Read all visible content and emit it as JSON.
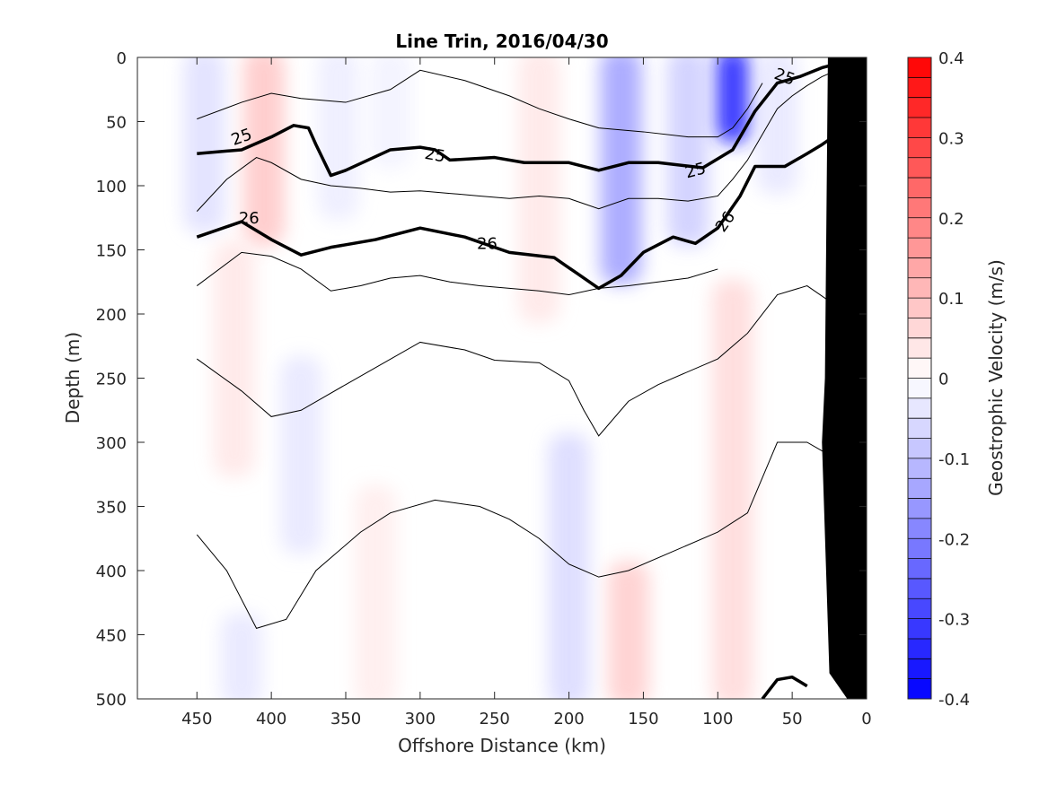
{
  "chart_data": {
    "type": "contour",
    "title": "Line Trin, 2016/04/30",
    "xlabel": "Offshore Distance (km)",
    "ylabel": "Depth (m)",
    "colorbar_label": "Geostrophic Velocity (m/s)",
    "xlim": [
      490,
      0
    ],
    "ylim": [
      500,
      0
    ],
    "x_reversed": true,
    "y_reversed": true,
    "x_ticks": [
      450,
      400,
      350,
      300,
      250,
      200,
      150,
      100,
      50,
      0
    ],
    "y_ticks": [
      0,
      50,
      100,
      150,
      200,
      250,
      300,
      350,
      400,
      450,
      500
    ],
    "colorbar_range": [
      -0.4,
      0.4
    ],
    "colorbar_ticks": [
      0.4,
      0.3,
      0.2,
      0.1,
      0,
      -0.1,
      -0.2,
      -0.3,
      -0.4
    ],
    "colorbar_levels": 32,
    "colors": {
      "positive": "#ff0000",
      "negative": "#0000ff",
      "zero": "#ffffff",
      "bathymetry": "#000000"
    },
    "data_extent_x": [
      450,
      0
    ],
    "velocity_bands": [
      {
        "x": 445,
        "y": [
          0,
          130
        ],
        "v": -0.05
      },
      {
        "x": 405,
        "y": [
          0,
          140
        ],
        "v": 0.09
      },
      {
        "x": 425,
        "y": [
          150,
          320
        ],
        "v": 0.04
      },
      {
        "x": 355,
        "y": [
          0,
          120
        ],
        "v": -0.03
      },
      {
        "x": 380,
        "y": [
          240,
          380
        ],
        "v": -0.04
      },
      {
        "x": 320,
        "y": [
          0,
          80
        ],
        "v": -0.02
      },
      {
        "x": 220,
        "y": [
          0,
          200
        ],
        "v": 0.04
      },
      {
        "x": 165,
        "y": [
          0,
          170
        ],
        "v": -0.15
      },
      {
        "x": 90,
        "y": [
          0,
          60
        ],
        "v": -0.35
      },
      {
        "x": 120,
        "y": [
          0,
          140
        ],
        "v": -0.08
      },
      {
        "x": 60,
        "y": [
          0,
          100
        ],
        "v": -0.04
      },
      {
        "x": 90,
        "y": [
          180,
          500
        ],
        "v": 0.06
      },
      {
        "x": 160,
        "y": [
          400,
          500
        ],
        "v": 0.08
      },
      {
        "x": 200,
        "y": [
          300,
          500
        ],
        "v": -0.06
      },
      {
        "x": 330,
        "y": [
          340,
          500
        ],
        "v": 0.03
      },
      {
        "x": 420,
        "y": [
          440,
          500
        ],
        "v": -0.04
      }
    ],
    "density_contours": [
      {
        "label": "25",
        "bold": true,
        "x": [
          450,
          420,
          400,
          385,
          375,
          370,
          360,
          350,
          320,
          300,
          290,
          280,
          250,
          230,
          200,
          180,
          160,
          140,
          110,
          90,
          75,
          60,
          45,
          30,
          20
        ],
        "y": [
          75,
          72,
          62,
          53,
          55,
          68,
          92,
          88,
          72,
          70,
          72,
          80,
          78,
          82,
          82,
          88,
          82,
          82,
          86,
          72,
          42,
          20,
          15,
          8,
          5
        ]
      },
      {
        "label": "26",
        "bold": true,
        "x": [
          450,
          420,
          400,
          380,
          360,
          330,
          300,
          270,
          240,
          210,
          195,
          180,
          165,
          150,
          130,
          115,
          100,
          85,
          75,
          55,
          40,
          30,
          20
        ],
        "y": [
          140,
          128,
          142,
          154,
          148,
          142,
          133,
          140,
          152,
          156,
          168,
          180,
          170,
          152,
          140,
          145,
          133,
          108,
          85,
          85,
          75,
          68,
          60
        ]
      },
      {
        "label": "",
        "bold": true,
        "x": [
          70,
          60,
          50,
          40
        ],
        "y": [
          500,
          485,
          483,
          490
        ]
      }
    ],
    "thin_contours": [
      {
        "x": [
          450,
          430,
          410,
          400,
          380,
          360,
          340,
          320,
          300,
          280,
          260,
          240,
          220,
          200,
          180,
          160,
          140,
          120,
          100,
          90,
          80,
          70,
          60,
          50,
          40,
          30,
          20
        ],
        "y": [
          120,
          95,
          78,
          82,
          95,
          100,
          102,
          105,
          104,
          106,
          108,
          110,
          108,
          110,
          118,
          110,
          110,
          112,
          108,
          95,
          80,
          60,
          40,
          30,
          22,
          15,
          10
        ]
      },
      {
        "x": [
          450,
          420,
          400,
          380,
          350,
          320,
          300,
          270,
          240,
          220,
          200,
          180,
          150,
          120,
          100,
          90,
          80,
          70
        ],
        "y": [
          48,
          35,
          28,
          32,
          35,
          25,
          10,
          18,
          30,
          40,
          48,
          55,
          58,
          62,
          62,
          55,
          40,
          20
        ]
      },
      {
        "x": [
          450,
          420,
          400,
          380,
          360,
          340,
          320,
          300,
          280,
          260,
          240,
          220,
          200,
          180,
          160,
          140,
          120,
          100
        ],
        "y": [
          178,
          152,
          155,
          165,
          182,
          178,
          172,
          170,
          175,
          178,
          180,
          182,
          185,
          180,
          178,
          175,
          172,
          165
        ]
      },
      {
        "x": [
          450,
          420,
          400,
          380,
          350,
          300,
          270,
          250,
          220,
          200,
          190,
          180,
          160,
          140,
          100,
          80,
          60,
          40,
          25
        ],
        "y": [
          235,
          260,
          280,
          275,
          255,
          222,
          228,
          236,
          238,
          252,
          275,
          295,
          268,
          255,
          235,
          215,
          185,
          178,
          190
        ]
      },
      {
        "x": [
          450,
          430,
          410,
          390,
          370,
          340,
          320,
          290,
          260,
          240,
          220,
          200,
          180,
          160,
          130,
          100,
          80,
          60,
          40,
          25
        ],
        "y": [
          372,
          400,
          445,
          438,
          400,
          370,
          355,
          345,
          350,
          360,
          375,
          395,
          405,
          400,
          385,
          370,
          355,
          300,
          300,
          310
        ]
      }
    ],
    "contour_labels": [
      {
        "text": "25",
        "x": 420,
        "y": 62,
        "angle": -20
      },
      {
        "text": "25",
        "x": 290,
        "y": 76,
        "angle": 10
      },
      {
        "text": "25",
        "x": 115,
        "y": 88,
        "angle": -15
      },
      {
        "text": "25",
        "x": 55,
        "y": 15,
        "angle": 20
      },
      {
        "text": "26",
        "x": 415,
        "y": 125,
        "angle": 0
      },
      {
        "text": "26",
        "x": 255,
        "y": 145,
        "angle": 0
      },
      {
        "text": "26",
        "x": 95,
        "y": 128,
        "angle": -55
      }
    ],
    "bathymetry": {
      "x": [
        0,
        0,
        13,
        25,
        30,
        28,
        26
      ],
      "y": [
        0,
        500,
        500,
        480,
        300,
        250,
        0
      ]
    }
  }
}
